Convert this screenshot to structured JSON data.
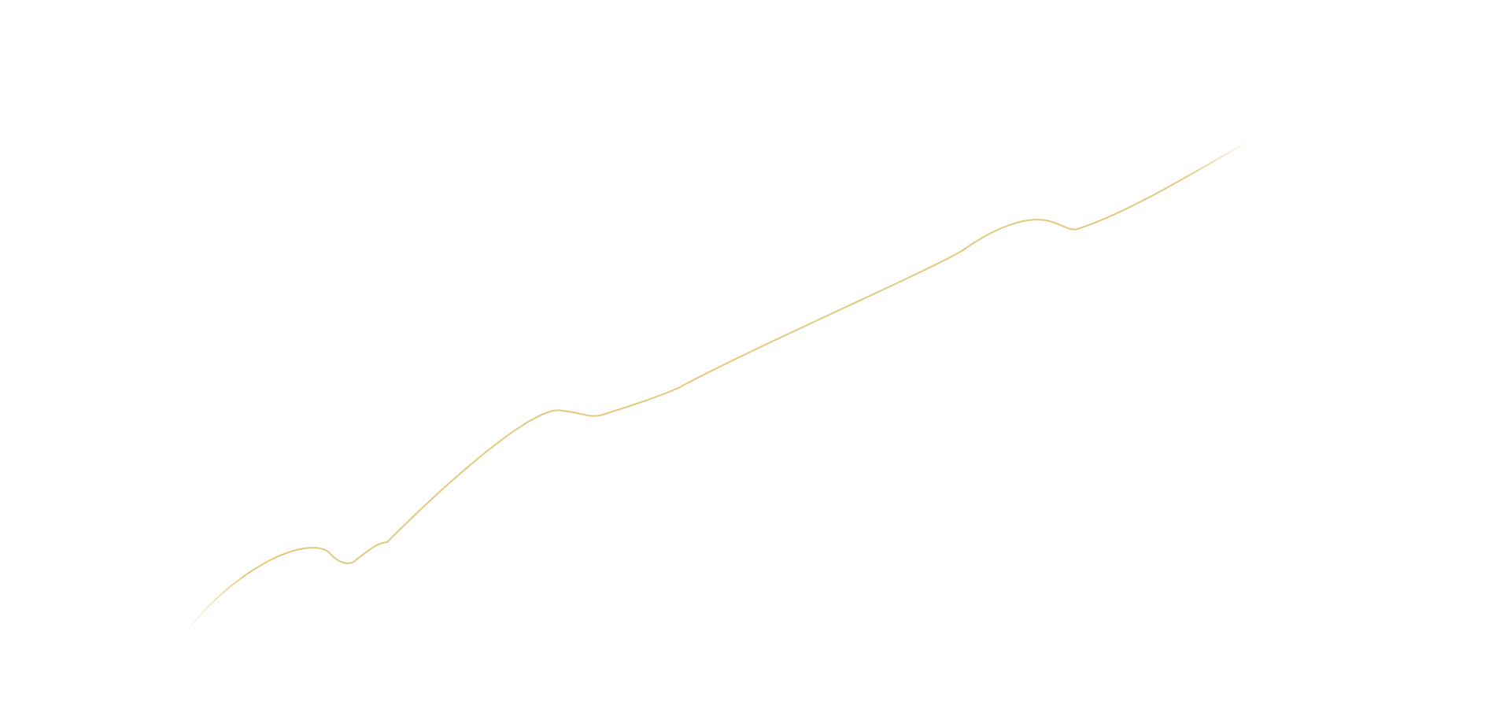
{
  "decoration": {
    "icon": "wavy-line",
    "line_color": "#e3c97c",
    "background_color": "#ffffff"
  }
}
